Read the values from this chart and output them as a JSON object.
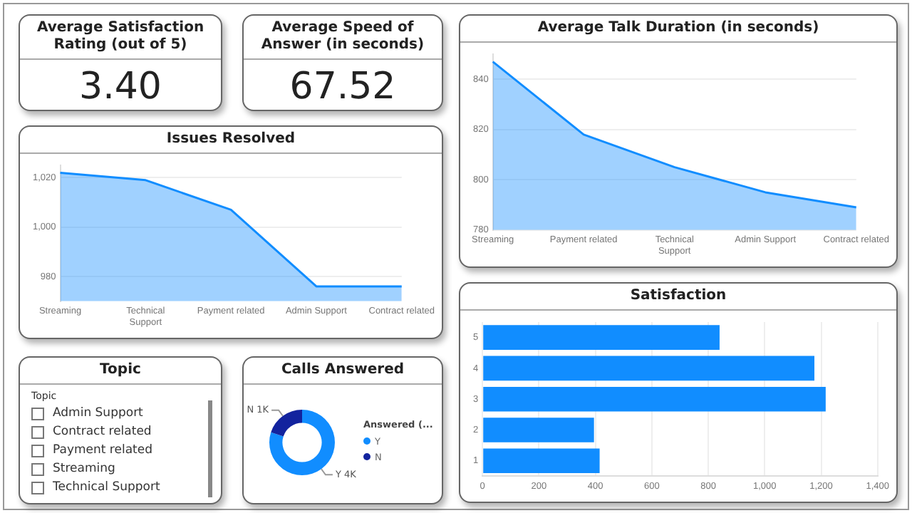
{
  "chart_data": [
    {
      "type": "other",
      "title": "Average Satisfaction Rating (out of 5)",
      "annotations": [
        "3.40"
      ]
    },
    {
      "type": "other",
      "title": "Average Speed of Answer (in seconds)",
      "annotations": [
        "67.52"
      ]
    },
    {
      "type": "area",
      "title": "Average Talk Duration (in seconds)",
      "categories": [
        "Streaming",
        "Payment related",
        "Technical Support",
        "Admin Support",
        "Contract related"
      ],
      "values": [
        847,
        818,
        805,
        795,
        789
      ],
      "color": "#118dff",
      "ylim": [
        780,
        850
      ],
      "yticks": [
        780,
        800,
        820,
        840
      ],
      "grid": "y"
    },
    {
      "type": "area",
      "title": "Issues Resolved",
      "categories": [
        "Streaming",
        "Technical Support",
        "Payment related",
        "Admin Support",
        "Contract related"
      ],
      "values": [
        1022,
        1019,
        1007,
        976,
        976
      ],
      "color": "#118dff",
      "ylim": [
        970,
        1025
      ],
      "yticks": [
        {
          "value": 980,
          "label": "980"
        },
        {
          "value": 1000,
          "label": "1,000"
        },
        {
          "value": 1020,
          "label": "1,020"
        }
      ],
      "grid": "y"
    },
    {
      "type": "bar",
      "orientation": "horizontal",
      "title": "Satisfaction",
      "categories": [
        "5",
        "4",
        "3",
        "2",
        "1"
      ],
      "values": [
        840,
        1176,
        1216,
        395,
        415
      ],
      "color": "#118dff",
      "xlim": [
        0,
        1400
      ],
      "xticks": [
        0,
        200,
        400,
        600,
        800,
        {
          "value": 1000,
          "label": "1,000"
        },
        {
          "value": 1200,
          "label": "1,200"
        },
        {
          "value": 1400,
          "label": "1,400"
        }
      ],
      "grid": "x"
    },
    {
      "type": "other",
      "title": "Topic",
      "subtitle": "Topic",
      "categories": [
        "Admin Support",
        "Contract related",
        "Payment related",
        "Streaming",
        "Technical Support"
      ]
    },
    {
      "type": "donut",
      "title": "Calls Answered",
      "categories": [
        "Y",
        "N"
      ],
      "values": [
        4000,
        1000
      ],
      "colors": [
        "#118dff",
        "#12239e"
      ],
      "value_labels": [
        "Y 4K",
        "N 1K"
      ],
      "legend_title": "Answered (...",
      "legend": "right"
    }
  ]
}
